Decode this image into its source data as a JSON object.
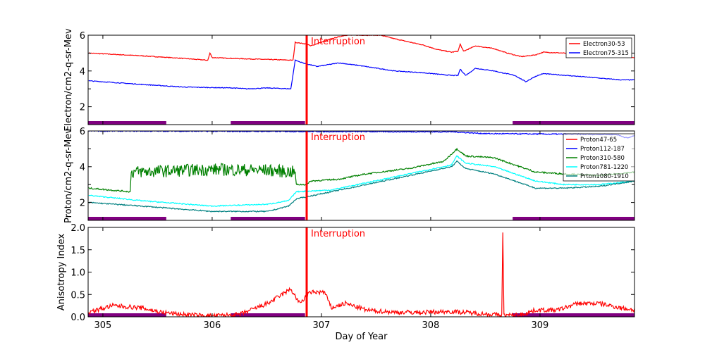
{
  "chart_data": {
    "type": "line",
    "xlabel": "Day of Year",
    "xlim": [
      304.865,
      309.865
    ],
    "xticks": [
      "305",
      "306",
      "307",
      "308",
      "309"
    ],
    "interruption": {
      "x": 306.865,
      "label": "Interruption",
      "color": "#ff0000"
    },
    "gaps": [
      [
        304.865,
        305.58
      ],
      [
        306.17,
        306.85
      ],
      [
        308.75,
        309.865
      ]
    ],
    "gap_color": "#800080",
    "panels": [
      {
        "ylabel": "Electron/cm2-q-sr-Mev",
        "ylim": [
          1,
          6
        ],
        "yticks": [
          "2",
          "4",
          "6"
        ],
        "legend_position": "top-right",
        "series": [
          {
            "name": "Electron30-53",
            "color": "#ff0000",
            "noise": 0.02,
            "points": [
              [
                304.87,
                5.0
              ],
              [
                305.35,
                4.85
              ],
              [
                305.74,
                4.7
              ],
              [
                305.96,
                4.6
              ],
              [
                305.98,
                5.0
              ],
              [
                306.0,
                4.75
              ],
              [
                306.19,
                4.7
              ],
              [
                306.64,
                4.62
              ],
              [
                306.74,
                4.6
              ],
              [
                306.76,
                5.6
              ],
              [
                306.87,
                5.5
              ],
              [
                306.9,
                5.4
              ],
              [
                307.09,
                5.8
              ],
              [
                307.22,
                6.0
              ],
              [
                307.54,
                6.0
              ],
              [
                307.67,
                5.8
              ],
              [
                307.93,
                5.45
              ],
              [
                308.06,
                5.2
              ],
              [
                308.19,
                5.05
              ],
              [
                308.25,
                5.1
              ],
              [
                308.27,
                5.5
              ],
              [
                308.3,
                5.1
              ],
              [
                308.41,
                5.4
              ],
              [
                308.58,
                5.25
              ],
              [
                308.7,
                5.0
              ],
              [
                308.83,
                4.8
              ],
              [
                308.96,
                4.9
              ],
              [
                309.03,
                5.05
              ],
              [
                309.22,
                5.0
              ],
              [
                309.41,
                4.85
              ],
              [
                309.87,
                4.75
              ]
            ]
          },
          {
            "name": "Electron75-315",
            "color": "#0000ff",
            "noise": 0.02,
            "points": [
              [
                304.87,
                3.45
              ],
              [
                305.35,
                3.25
              ],
              [
                305.74,
                3.1
              ],
              [
                306.19,
                3.05
              ],
              [
                306.32,
                3.0
              ],
              [
                306.51,
                3.05
              ],
              [
                306.72,
                3.0
              ],
              [
                306.76,
                4.6
              ],
              [
                306.83,
                4.45
              ],
              [
                306.96,
                4.25
              ],
              [
                307.16,
                4.45
              ],
              [
                307.35,
                4.3
              ],
              [
                307.67,
                4.0
              ],
              [
                307.93,
                3.9
              ],
              [
                308.19,
                3.75
              ],
              [
                308.25,
                3.75
              ],
              [
                308.27,
                4.1
              ],
              [
                308.32,
                3.75
              ],
              [
                308.41,
                4.15
              ],
              [
                308.58,
                4.0
              ],
              [
                308.77,
                3.75
              ],
              [
                308.87,
                3.4
              ],
              [
                308.96,
                3.7
              ],
              [
                309.03,
                3.85
              ],
              [
                309.35,
                3.7
              ],
              [
                309.74,
                3.5
              ],
              [
                309.87,
                3.5
              ]
            ]
          }
        ]
      },
      {
        "ylabel": "Proton/cm2-q-sr-Mev",
        "ylim": [
          1,
          6
        ],
        "yticks": [
          "2",
          "4",
          "6"
        ],
        "legend_position": "right",
        "series": [
          {
            "name": "Proton47-65",
            "color": "#ff0000",
            "noise": 0,
            "points": []
          },
          {
            "name": "Proton112-187",
            "color": "#0000ff",
            "noise": 0.03,
            "points": [
              [
                304.87,
                6.0
              ],
              [
                308.2,
                5.95
              ],
              [
                308.5,
                5.85
              ],
              [
                309.7,
                5.8
              ],
              [
                309.8,
                5.6
              ],
              [
                309.87,
                5.75
              ]
            ]
          },
          {
            "name": "Proton310-580",
            "color": "#008000",
            "noise": 0.04,
            "points": [
              [
                304.87,
                2.8
              ],
              [
                305.25,
                2.6
              ],
              [
                305.26,
                3.7
              ],
              [
                306.0,
                3.85
              ],
              [
                306.5,
                3.8
              ],
              [
                306.76,
                3.7
              ],
              [
                306.77,
                3.0
              ],
              [
                306.87,
                3.0
              ],
              [
                306.9,
                3.2
              ],
              [
                307.16,
                3.3
              ],
              [
                307.41,
                3.6
              ],
              [
                307.8,
                3.9
              ],
              [
                308.12,
                4.3
              ],
              [
                308.24,
                5.0
              ],
              [
                308.32,
                4.6
              ],
              [
                308.58,
                4.5
              ],
              [
                308.77,
                4.1
              ],
              [
                308.96,
                3.7
              ],
              [
                309.22,
                3.6
              ],
              [
                309.54,
                3.5
              ],
              [
                309.87,
                3.7
              ]
            ]
          },
          {
            "name": "Proton781-1220",
            "color": "#00ffff",
            "noise": 0.03,
            "points": [
              [
                304.87,
                2.4
              ],
              [
                305.35,
                2.1
              ],
              [
                305.99,
                1.8
              ],
              [
                306.51,
                1.9
              ],
              [
                306.7,
                2.1
              ],
              [
                306.77,
                2.6
              ],
              [
                307.09,
                2.7
              ],
              [
                307.41,
                3.1
              ],
              [
                307.8,
                3.6
              ],
              [
                308.19,
                4.1
              ],
              [
                308.24,
                4.6
              ],
              [
                308.32,
                4.2
              ],
              [
                308.58,
                4.0
              ],
              [
                308.96,
                3.2
              ],
              [
                309.22,
                3.0
              ],
              [
                309.54,
                3.0
              ],
              [
                309.87,
                3.2
              ]
            ]
          },
          {
            "name": "Prton1080-1910",
            "color": "#008080",
            "noise": 0.03,
            "points": [
              [
                304.87,
                2.0
              ],
              [
                305.35,
                1.8
              ],
              [
                305.99,
                1.5
              ],
              [
                306.51,
                1.5
              ],
              [
                306.7,
                1.8
              ],
              [
                306.77,
                2.2
              ],
              [
                307.09,
                2.6
              ],
              [
                307.41,
                3.0
              ],
              [
                307.8,
                3.5
              ],
              [
                308.19,
                4.0
              ],
              [
                308.24,
                4.3
              ],
              [
                308.32,
                3.9
              ],
              [
                308.58,
                3.6
              ],
              [
                308.96,
                2.8
              ],
              [
                309.22,
                2.8
              ],
              [
                309.54,
                2.9
              ],
              [
                309.87,
                3.2
              ]
            ]
          }
        ]
      },
      {
        "ylabel": "Anisotropy Index",
        "ylim": [
          0,
          2
        ],
        "yticks": [
          "0.0",
          "0.5",
          "1.0",
          "1.5",
          "2.0"
        ],
        "series": [
          {
            "name": "Anisotropy",
            "color": "#ff0000",
            "noise": 0.05,
            "points": [
              [
                304.87,
                0.1
              ],
              [
                305.09,
                0.25
              ],
              [
                305.35,
                0.2
              ],
              [
                305.54,
                0.1
              ],
              [
                305.74,
                0.05
              ],
              [
                305.99,
                0.02
              ],
              [
                306.25,
                0.05
              ],
              [
                306.51,
                0.3
              ],
              [
                306.64,
                0.5
              ],
              [
                306.72,
                0.62
              ],
              [
                306.8,
                0.3
              ],
              [
                306.9,
                0.55
              ],
              [
                307.03,
                0.55
              ],
              [
                307.09,
                0.2
              ],
              [
                307.22,
                0.3
              ],
              [
                307.41,
                0.15
              ],
              [
                307.67,
                0.1
              ],
              [
                307.93,
                0.1
              ],
              [
                308.19,
                0.12
              ],
              [
                308.58,
                0.05
              ],
              [
                308.65,
                0.03
              ],
              [
                308.66,
                1.85
              ],
              [
                308.67,
                0.03
              ],
              [
                308.83,
                0.05
              ],
              [
                308.96,
                0.15
              ],
              [
                309.16,
                0.15
              ],
              [
                309.35,
                0.3
              ],
              [
                309.54,
                0.3
              ],
              [
                309.74,
                0.2
              ],
              [
                309.87,
                0.15
              ]
            ]
          }
        ]
      }
    ]
  }
}
